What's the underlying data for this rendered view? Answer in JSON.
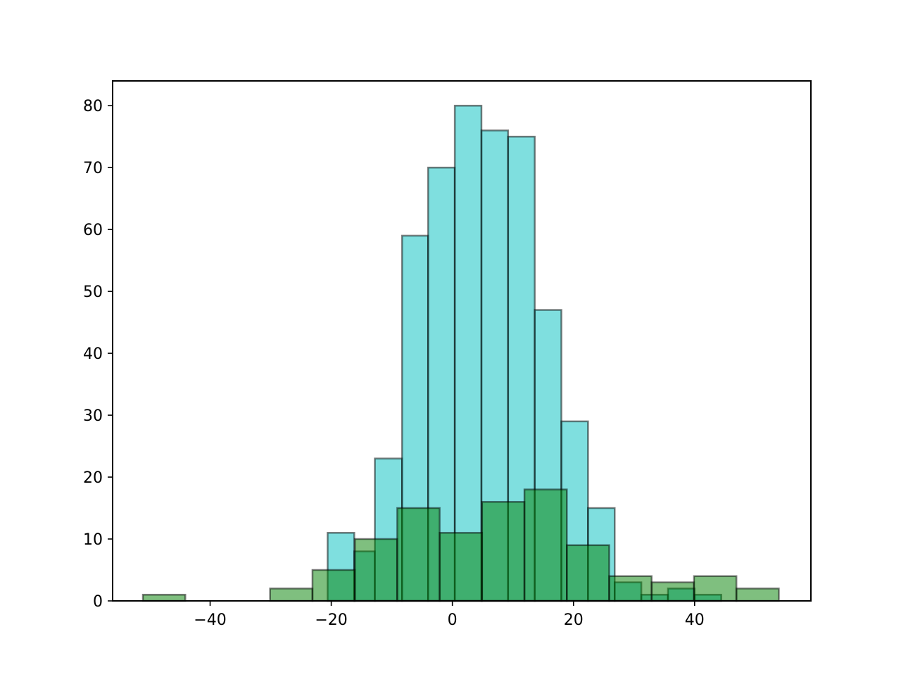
{
  "chart_data": {
    "type": "bar",
    "title": "",
    "xlabel": "",
    "ylabel": "",
    "xlim": [
      -56.1,
      59.2
    ],
    "ylim": [
      0,
      84
    ],
    "grid": false,
    "x_ticks": [
      -40,
      -20,
      0,
      20,
      40
    ],
    "x_tick_labels": [
      "−40",
      "−20",
      "0",
      "20",
      "40"
    ],
    "y_ticks": [
      0,
      10,
      20,
      30,
      40,
      50,
      60,
      70,
      80
    ],
    "y_tick_labels": [
      "0",
      "10",
      "20",
      "30",
      "40",
      "50",
      "60",
      "70",
      "80"
    ],
    "colors": {
      "series_a": "#00bfbf",
      "series_b": "#008000",
      "edge": "#000000"
    },
    "series": [
      {
        "bins": [
          [
            -20.6,
            -16.2,
            11
          ],
          [
            -16.2,
            -12.8,
            8
          ],
          [
            -12.8,
            -8.3,
            23
          ],
          [
            -8.3,
            -4.0,
            59
          ],
          [
            -4.0,
            0.4,
            70
          ],
          [
            0.4,
            4.8,
            80
          ],
          [
            4.8,
            9.2,
            76
          ],
          [
            9.2,
            13.6,
            75
          ],
          [
            13.6,
            18.0,
            47
          ],
          [
            18.0,
            22.4,
            29
          ],
          [
            22.4,
            26.8,
            15
          ],
          [
            26.8,
            31.2,
            3
          ],
          [
            31.2,
            35.6,
            1
          ],
          [
            35.6,
            40.0,
            2
          ],
          [
            40.0,
            44.4,
            1
          ]
        ]
      },
      {
        "bins": [
          [
            -51.1,
            -44.1,
            1
          ],
          [
            -44.1,
            -37.1,
            0
          ],
          [
            -37.1,
            -30.1,
            0
          ],
          [
            -30.1,
            -23.1,
            2
          ],
          [
            -23.1,
            -16.1,
            5
          ],
          [
            -16.1,
            -9.1,
            10
          ],
          [
            -9.1,
            -2.1,
            15
          ],
          [
            -2.1,
            4.9,
            11
          ],
          [
            4.9,
            11.9,
            16
          ],
          [
            11.9,
            18.9,
            18
          ],
          [
            18.9,
            25.9,
            9
          ],
          [
            25.9,
            32.9,
            4
          ],
          [
            32.9,
            39.9,
            3
          ],
          [
            39.9,
            46.9,
            4
          ],
          [
            46.9,
            53.9,
            2
          ]
        ]
      }
    ]
  }
}
